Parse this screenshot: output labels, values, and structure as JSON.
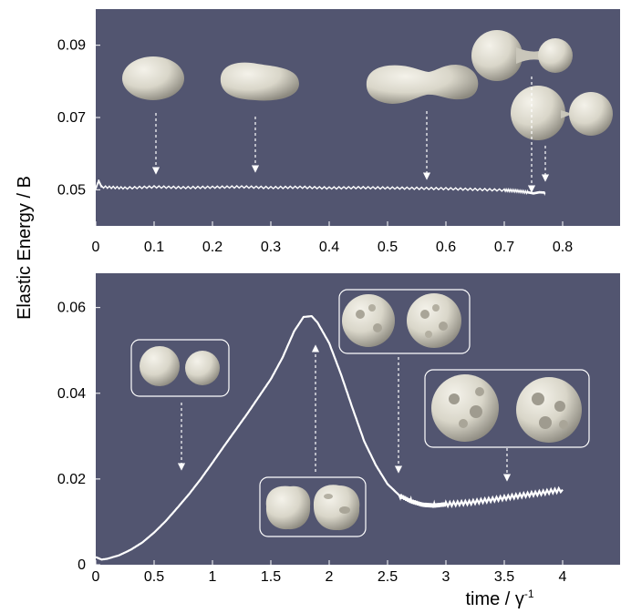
{
  "figure": {
    "ylabel": "Elastic Energy  /  B",
    "xlabel_main": "time / γ",
    "xlabel_sup": "-1"
  },
  "chart_data": [
    {
      "type": "line",
      "panel": "top",
      "xlim": [
        0,
        0.9
      ],
      "ylim": [
        0.04,
        0.1
      ],
      "xticks": [
        "0",
        "0.1",
        "0.2",
        "0.3",
        "0.4",
        "0.5",
        "0.6",
        "0.7",
        "0.8"
      ],
      "yticks": [
        "0.05",
        "0.07",
        "0.09"
      ],
      "grid": false,
      "background": "#525570",
      "line_color": "#ffffff",
      "series": [
        {
          "x": [
            0,
            0.005,
            0.01,
            0.05,
            0.1,
            0.15,
            0.2,
            0.25,
            0.3,
            0.35,
            0.4,
            0.45,
            0.5,
            0.55,
            0.6,
            0.65,
            0.7,
            0.72,
            0.74,
            0.75,
            0.76,
            0.77
          ],
          "y": [
            0.0503,
            0.0525,
            0.0508,
            0.0505,
            0.0508,
            0.0506,
            0.0507,
            0.0508,
            0.0506,
            0.0507,
            0.0505,
            0.0506,
            0.0505,
            0.0504,
            0.0503,
            0.0501,
            0.0499,
            0.0497,
            0.0493,
            0.049,
            0.0493,
            0.0492
          ]
        }
      ],
      "annotations": [
        {
          "kind": "shape",
          "shape": "oblate-droplet",
          "x": 0.1
        },
        {
          "kind": "shape",
          "shape": "elongated-droplet",
          "x": 0.27
        },
        {
          "kind": "shape",
          "shape": "dumbbell-droplet",
          "x": 0.57
        },
        {
          "kind": "shape",
          "shape": "necking-droplet",
          "x": 0.745
        },
        {
          "kind": "shape",
          "shape": "pinch-off-droplet",
          "x": 0.765
        }
      ]
    },
    {
      "type": "line",
      "panel": "bottom",
      "xlim": [
        0,
        4.5
      ],
      "ylim": [
        0,
        0.068
      ],
      "xticks": [
        "0",
        "0.5",
        "1",
        "1.5",
        "2",
        "2.5",
        "3",
        "3.5",
        "4"
      ],
      "yticks": [
        "0",
        "0.02",
        "0.04",
        "0.06"
      ],
      "grid": false,
      "background": "#525570",
      "line_color": "#ffffff",
      "series": [
        {
          "x": [
            0,
            0.05,
            0.1,
            0.2,
            0.3,
            0.4,
            0.5,
            0.6,
            0.7,
            0.8,
            0.9,
            1.0,
            1.1,
            1.2,
            1.3,
            1.4,
            1.5,
            1.6,
            1.7,
            1.78,
            1.85,
            1.9,
            2.0,
            2.1,
            2.2,
            2.3,
            2.4,
            2.5,
            2.6,
            2.7,
            2.8,
            2.9,
            3.0,
            3.2,
            3.4,
            3.6,
            3.8,
            4.0
          ],
          "y": [
            0.0018,
            0.0012,
            0.0014,
            0.0022,
            0.0035,
            0.0052,
            0.0075,
            0.0102,
            0.0133,
            0.0165,
            0.02,
            0.0238,
            0.0277,
            0.0315,
            0.0353,
            0.0393,
            0.0433,
            0.0483,
            0.0545,
            0.0578,
            0.058,
            0.0565,
            0.0517,
            0.0445,
            0.0365,
            0.0288,
            0.0232,
            0.0188,
            0.0162,
            0.0148,
            0.014,
            0.0138,
            0.0141,
            0.0145,
            0.0152,
            0.016,
            0.0167,
            0.0175
          ]
        }
      ],
      "annotations": [
        {
          "kind": "shape",
          "shape": "smooth-spheres",
          "x": 0.72
        },
        {
          "kind": "shape",
          "shape": "lightly-wrinkled",
          "x": 1.88
        },
        {
          "kind": "shape",
          "shape": "wrinkled-crumpled",
          "x": 2.6
        },
        {
          "kind": "shape",
          "shape": "buckled-dimpled",
          "x": 3.5
        }
      ]
    }
  ]
}
